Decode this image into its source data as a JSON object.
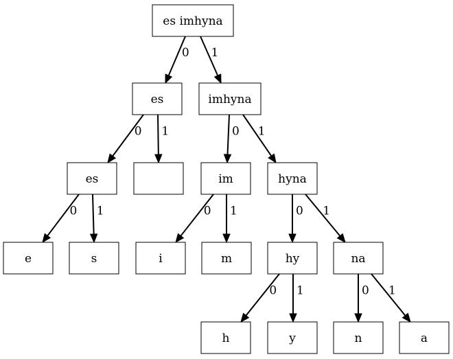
{
  "nodes": {
    "root": "es imhyna",
    "es": "es",
    "imhyna": "imhyna",
    "es2": "es",
    "empty": "",
    "im": "im",
    "hyna": "hyna",
    "e": "e",
    "s": "s",
    "i": "i",
    "m": "m",
    "hy": "hy",
    "na": "na",
    "h": "h",
    "y": "y",
    "n": "n",
    "a": "a"
  },
  "edges": {
    "root_es": "0",
    "root_imhyna": "1",
    "es_es2": "0",
    "es_empty": "1",
    "imhyna_im": "0",
    "imhyna_hyna": "1",
    "es2_e": "0",
    "es2_s": "1",
    "im_i": "0",
    "im_m": "1",
    "hyna_hy": "0",
    "hyna_na": "1",
    "hy_h": "0",
    "hy_y": "1",
    "na_n": "0",
    "na_a": "1"
  }
}
